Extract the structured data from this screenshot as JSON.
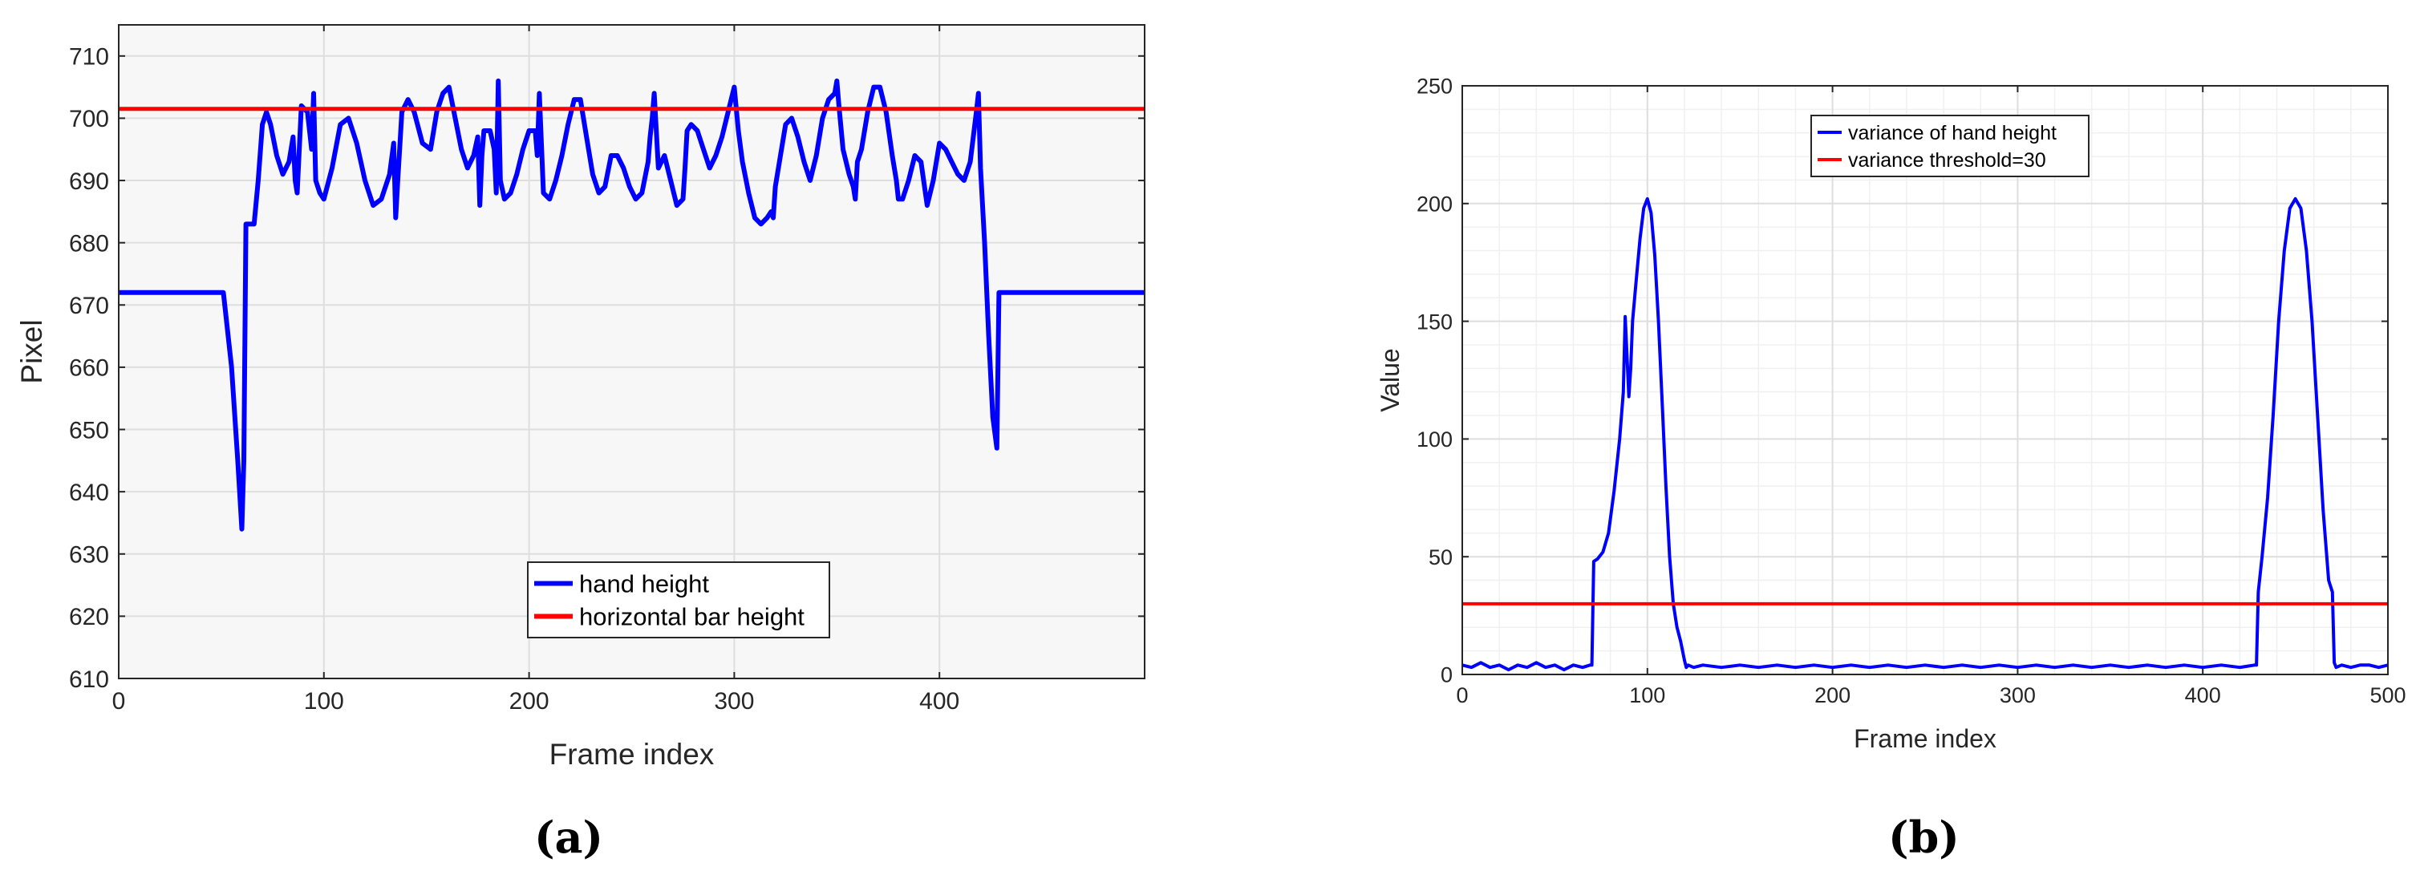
{
  "chart_data": [
    {
      "panel_label": "(a)",
      "type": "line",
      "xlabel": "Frame index",
      "ylabel": "Pixel",
      "xlim": [
        0,
        500
      ],
      "ylim": [
        610,
        715
      ],
      "xticks": [
        0,
        100,
        200,
        300,
        400
      ],
      "yticks": [
        610,
        620,
        630,
        640,
        650,
        660,
        670,
        680,
        690,
        700,
        710
      ],
      "grid": true,
      "legend_position": "bottom-center",
      "series": [
        {
          "name": "hand height",
          "color": "#0000ff",
          "x": [
            0,
            20,
            40,
            51,
            55,
            58,
            60,
            61,
            62,
            65,
            66,
            68,
            70,
            72,
            74,
            77,
            80,
            83,
            85,
            86,
            87,
            89,
            92,
            94,
            95,
            96,
            98,
            100,
            104,
            108,
            112,
            116,
            120,
            124,
            128,
            132,
            134,
            135,
            136,
            138,
            141,
            144,
            148,
            152,
            155,
            158,
            161,
            164,
            167,
            170,
            173,
            175,
            176,
            177,
            178,
            181,
            183,
            184,
            185,
            186,
            188,
            191,
            194,
            197,
            200,
            203,
            204,
            205,
            207,
            210,
            213,
            216,
            219,
            222,
            225,
            228,
            231,
            234,
            237,
            240,
            243,
            246,
            249,
            252,
            255,
            258,
            259,
            260,
            261,
            263,
            266,
            269,
            272,
            275,
            276,
            277,
            279,
            282,
            285,
            288,
            291,
            294,
            297,
            300,
            302,
            304,
            307,
            310,
            313,
            316,
            318,
            319,
            320,
            322,
            325,
            328,
            331,
            334,
            337,
            340,
            343,
            346,
            349,
            350,
            351,
            353,
            356,
            358,
            359,
            360,
            362,
            365,
            368,
            371,
            374,
            377,
            379,
            380,
            382,
            385,
            388,
            391,
            394,
            397,
            400,
            403,
            406,
            409,
            412,
            415,
            418,
            419,
            420,
            422,
            424,
            426,
            428,
            429,
            430,
            433,
            440,
            460,
            480,
            500
          ],
          "values": [
            672,
            672,
            672,
            672,
            660,
            645,
            634,
            645,
            683,
            683,
            683,
            690,
            699,
            701,
            699,
            694,
            691,
            693,
            697,
            690,
            688,
            702,
            701,
            695,
            704,
            690,
            688,
            687,
            692,
            699,
            700,
            696,
            690,
            686,
            687,
            691,
            696,
            684,
            690,
            701,
            703,
            701,
            696,
            695,
            701,
            704,
            705,
            700,
            695,
            692,
            694,
            697,
            686,
            694,
            698,
            698,
            695,
            688,
            706,
            690,
            687,
            688,
            691,
            695,
            698,
            698,
            694,
            704,
            688,
            687,
            690,
            694,
            699,
            703,
            703,
            697,
            691,
            688,
            689,
            694,
            694,
            692,
            689,
            687,
            688,
            693,
            697,
            700,
            704,
            692,
            694,
            690,
            686,
            687,
            692,
            698,
            699,
            698,
            695,
            692,
            694,
            697,
            701,
            705,
            698,
            693,
            688,
            684,
            683,
            684,
            685,
            684,
            689,
            693,
            699,
            700,
            697,
            693,
            690,
            694,
            700,
            703,
            704,
            706,
            702,
            695,
            691,
            689,
            687,
            693,
            695,
            701,
            705,
            705,
            701,
            694,
            690,
            687,
            687,
            690,
            694,
            693,
            686,
            690,
            696,
            695,
            693,
            691,
            690,
            693,
            701,
            704,
            692,
            680,
            665,
            652,
            647,
            672,
            672,
            672,
            672,
            672,
            672,
            672
          ]
        },
        {
          "name": "horizontal bar height",
          "color": "#ff0000",
          "x": [
            0,
            500
          ],
          "values": [
            701.5,
            701.5
          ]
        }
      ]
    },
    {
      "panel_label": "(b)",
      "type": "line",
      "xlabel": "Frame index",
      "ylabel": "Value",
      "xlim": [
        0,
        500
      ],
      "ylim": [
        0,
        250
      ],
      "xticks": [
        0,
        100,
        200,
        300,
        400,
        500
      ],
      "yticks": [
        0,
        50,
        100,
        150,
        200,
        250
      ],
      "grid": true,
      "minor_grid": true,
      "legend_position": "top-center",
      "series": [
        {
          "name": "variance of hand height",
          "color": "#0000ff",
          "x": [
            0,
            5,
            10,
            15,
            20,
            25,
            30,
            35,
            40,
            45,
            50,
            55,
            60,
            65,
            69,
            70,
            71,
            73,
            76,
            79,
            82,
            85,
            87,
            88,
            89,
            90,
            91,
            92,
            94,
            96,
            98,
            100,
            102,
            104,
            106,
            108,
            110,
            112,
            114,
            116,
            118,
            120,
            121,
            122,
            125,
            130,
            140,
            150,
            160,
            170,
            180,
            190,
            200,
            210,
            220,
            230,
            240,
            250,
            260,
            270,
            280,
            290,
            300,
            310,
            320,
            330,
            340,
            350,
            360,
            370,
            380,
            390,
            400,
            410,
            420,
            428,
            429,
            430,
            432,
            435,
            438,
            441,
            444,
            447,
            450,
            453,
            456,
            459,
            462,
            465,
            468,
            470,
            471,
            472,
            475,
            480,
            485,
            490,
            495,
            500
          ],
          "values": [
            4,
            3,
            5,
            3,
            4,
            2,
            4,
            3,
            5,
            3,
            4,
            2,
            4,
            3,
            4,
            4,
            48,
            49,
            52,
            60,
            78,
            100,
            120,
            152,
            135,
            118,
            130,
            150,
            168,
            185,
            198,
            202,
            196,
            178,
            150,
            115,
            80,
            50,
            30,
            20,
            14,
            6,
            3,
            4,
            3,
            4,
            3,
            4,
            3,
            4,
            3,
            4,
            3,
            4,
            3,
            4,
            3,
            4,
            3,
            4,
            3,
            4,
            3,
            4,
            3,
            4,
            3,
            4,
            3,
            4,
            3,
            4,
            3,
            4,
            3,
            4,
            4,
            35,
            50,
            75,
            110,
            150,
            180,
            198,
            202,
            198,
            180,
            150,
            110,
            70,
            40,
            35,
            5,
            3,
            4,
            3,
            4,
            4,
            3,
            4
          ]
        },
        {
          "name": "variance threshold=30",
          "color": "#ff0000",
          "x": [
            0,
            500
          ],
          "values": [
            30,
            30
          ]
        }
      ]
    }
  ]
}
